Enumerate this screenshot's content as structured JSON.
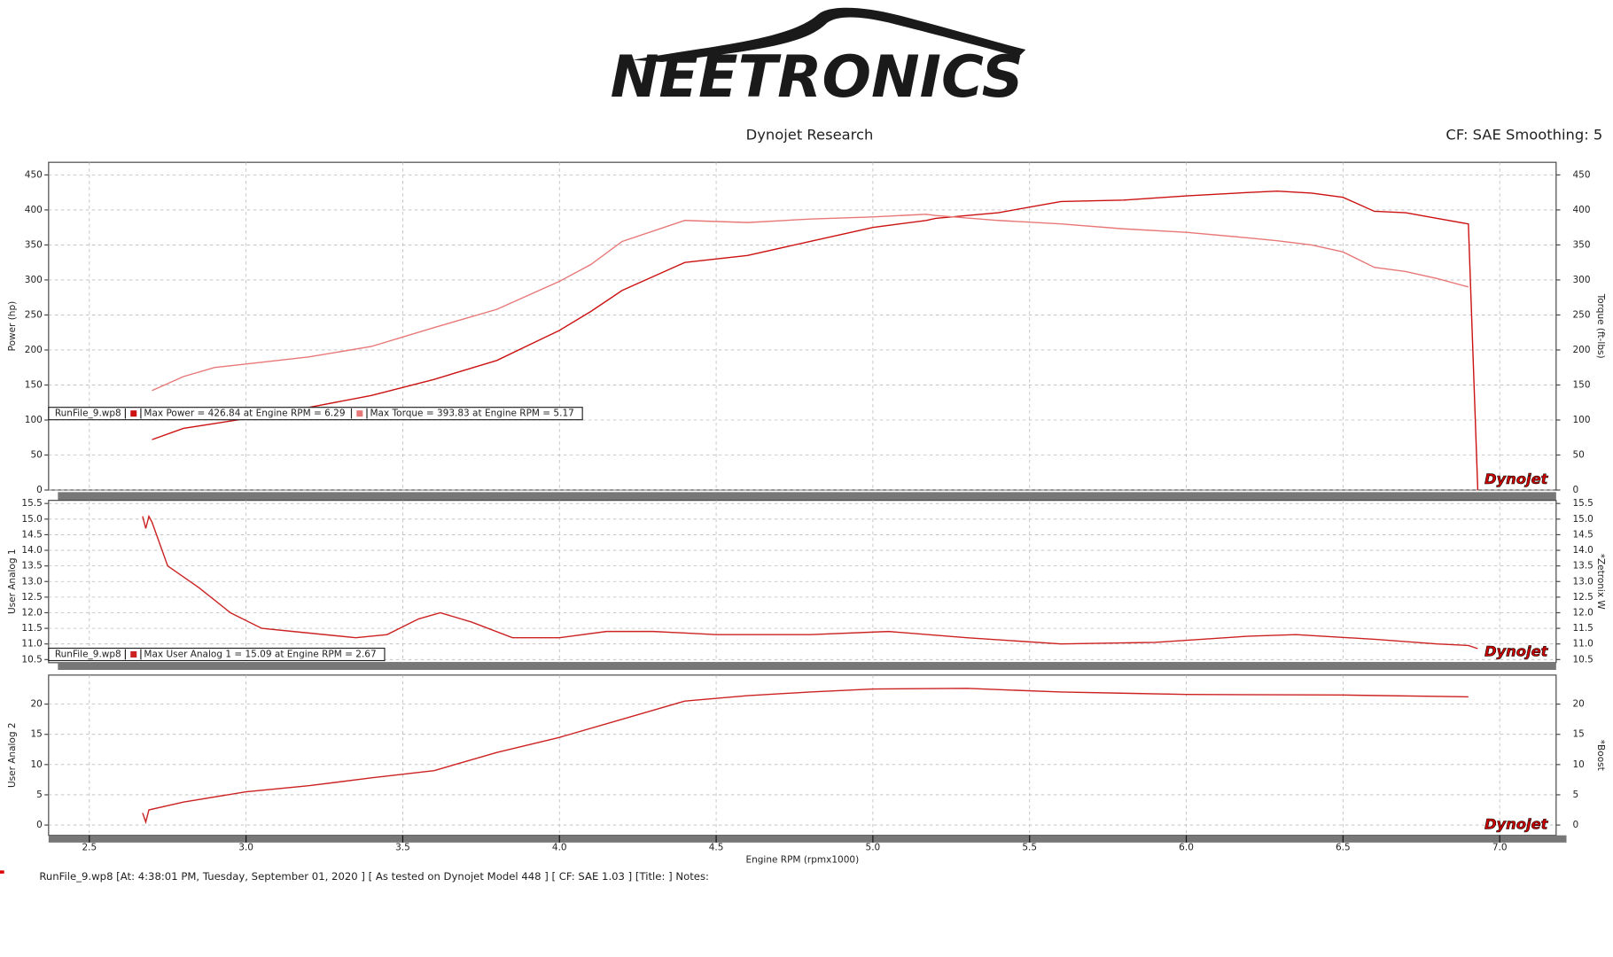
{
  "header": {
    "logo": "NEETRONICS",
    "title": "Dynojet Research",
    "settings": "CF: SAE Smoothing: 5",
    "brand": "Dynojet"
  },
  "chart_data": [
    {
      "type": "line",
      "ylabel": "Power (hp)",
      "y2label": "Torque (ft-lbs)",
      "run_label": "RunFile_9.wp8",
      "ylim": [
        0,
        468
      ],
      "yticks": [
        0,
        50,
        100,
        150,
        200,
        250,
        300,
        350,
        400,
        450
      ],
      "y2lim": [
        0,
        468
      ],
      "y2ticks": [
        0,
        50,
        100,
        150,
        200,
        250,
        300,
        350,
        400,
        450
      ],
      "grid": true,
      "x": [
        2.7,
        2.8,
        2.9,
        3.0,
        3.2,
        3.4,
        3.6,
        3.8,
        4.0,
        4.1,
        4.2,
        4.4,
        4.6,
        4.8,
        5.0,
        5.17,
        5.2,
        5.4,
        5.6,
        5.8,
        6.0,
        6.2,
        6.29,
        6.4,
        6.5,
        6.6,
        6.7,
        6.8,
        6.9,
        6.93
      ],
      "series": [
        {
          "name": "Max Power = 426.84 at Engine RPM = 6.29",
          "color": "#cc1111",
          "values": [
            72,
            88,
            95,
            102,
            118,
            135,
            158,
            185,
            228,
            255,
            285,
            325,
            335,
            355,
            375,
            385,
            388,
            396,
            412,
            414,
            420,
            425,
            426.84,
            424,
            418,
            398,
            396,
            388,
            380,
            0
          ]
        },
        {
          "name": "Max Torque = 393.83 at Engine RPM = 5.17",
          "color": "#e87878",
          "axis": "y2",
          "values": [
            142,
            162,
            175,
            180,
            190,
            205,
            232,
            258,
            298,
            322,
            355,
            385,
            382,
            387,
            390,
            393.83,
            392,
            385,
            380,
            373,
            368,
            360,
            356,
            350,
            340,
            318,
            312,
            302,
            290,
            null
          ]
        }
      ]
    },
    {
      "type": "line",
      "ylabel": "User Analog 1",
      "y2label": "*Zetronix W",
      "run_label": "RunFile_9.wp8",
      "ylim": [
        10.4,
        15.6
      ],
      "yticks": [
        10.5,
        {
          "value": 11,
          "label": "11.0"
        },
        11.5,
        {
          "value": 12,
          "label": "12.0"
        },
        12.5,
        {
          "value": 13,
          "label": "13.0"
        },
        13.5,
        {
          "value": 14,
          "label": "14.0"
        },
        14.5,
        {
          "value": 15,
          "label": "15.0"
        },
        15.5
      ],
      "y2lim": [
        10.4,
        15.6
      ],
      "y2ticks": [
        10.5,
        {
          "value": 11,
          "label": "11.0"
        },
        11.5,
        {
          "value": 12,
          "label": "12.0"
        },
        12.5,
        {
          "value": 13,
          "label": "13.0"
        },
        13.5,
        {
          "value": 14,
          "label": "14.0"
        },
        14.5,
        {
          "value": 15,
          "label": "15.0"
        },
        15.5
      ],
      "grid": true,
      "x": [
        2.67,
        2.68,
        2.69,
        2.7,
        2.75,
        2.85,
        2.95,
        3.05,
        3.15,
        3.35,
        3.45,
        3.55,
        3.62,
        3.72,
        3.85,
        4.0,
        4.15,
        4.3,
        4.5,
        4.8,
        5.05,
        5.3,
        5.6,
        5.9,
        6.2,
        6.35,
        6.6,
        6.8,
        6.9,
        6.93
      ],
      "series": [
        {
          "name": "Max User Analog 1 = 15.09 at Engine RPM = 2.67",
          "color": "#cc2222",
          "values": [
            15.09,
            14.7,
            15.09,
            14.9,
            13.5,
            12.8,
            12.0,
            11.5,
            11.4,
            11.2,
            11.3,
            11.8,
            12.0,
            11.7,
            11.2,
            11.2,
            11.4,
            11.4,
            11.3,
            11.3,
            11.4,
            11.2,
            11.0,
            11.05,
            11.25,
            11.3,
            11.15,
            11.0,
            10.95,
            10.85
          ]
        }
      ]
    },
    {
      "type": "line",
      "ylabel": "User Analog 2",
      "y2label": "*Boost",
      "xlabel": "Engine RPM (rpmx1000)",
      "ylim": [
        -1.7,
        24.8
      ],
      "yticks": [
        0,
        5,
        10,
        15,
        20
      ],
      "y2lim": [
        -1.7,
        24.8
      ],
      "y2ticks": [
        0,
        5,
        10,
        15,
        20
      ],
      "grid": true,
      "xlim": [
        2.37,
        7.18
      ],
      "xticks": [
        2.5,
        {
          "value": 3,
          "label": "3.0"
        },
        3.5,
        {
          "value": 4,
          "label": "4.0"
        },
        4.5,
        {
          "value": 5,
          "label": "5.0"
        },
        5.5,
        {
          "value": 6,
          "label": "6.0"
        },
        6.5,
        {
          "value": 7,
          "label": "7.0"
        }
      ],
      "x": [
        2.67,
        2.68,
        2.69,
        2.8,
        3.0,
        3.2,
        3.4,
        3.6,
        3.8,
        4.0,
        4.2,
        4.4,
        4.6,
        4.8,
        5.0,
        5.3,
        5.6,
        6.0,
        6.5,
        6.9
      ],
      "series": [
        {
          "color": "#cc2222",
          "values": [
            2,
            0.5,
            2.5,
            3.8,
            5.5,
            6.5,
            7.8,
            9,
            12,
            14.5,
            17.5,
            20.5,
            21.4,
            22,
            22.5,
            22.6,
            22,
            21.6,
            21.5,
            21.2
          ]
        }
      ]
    }
  ],
  "footer": {
    "text": "RunFile_9.wp8 [At: 4:38:01 PM, Tuesday, September 01, 2020 ] [ As tested on Dynojet Model 448 ] [ CF: SAE 1.03 ] [Title: ] Notes:"
  }
}
